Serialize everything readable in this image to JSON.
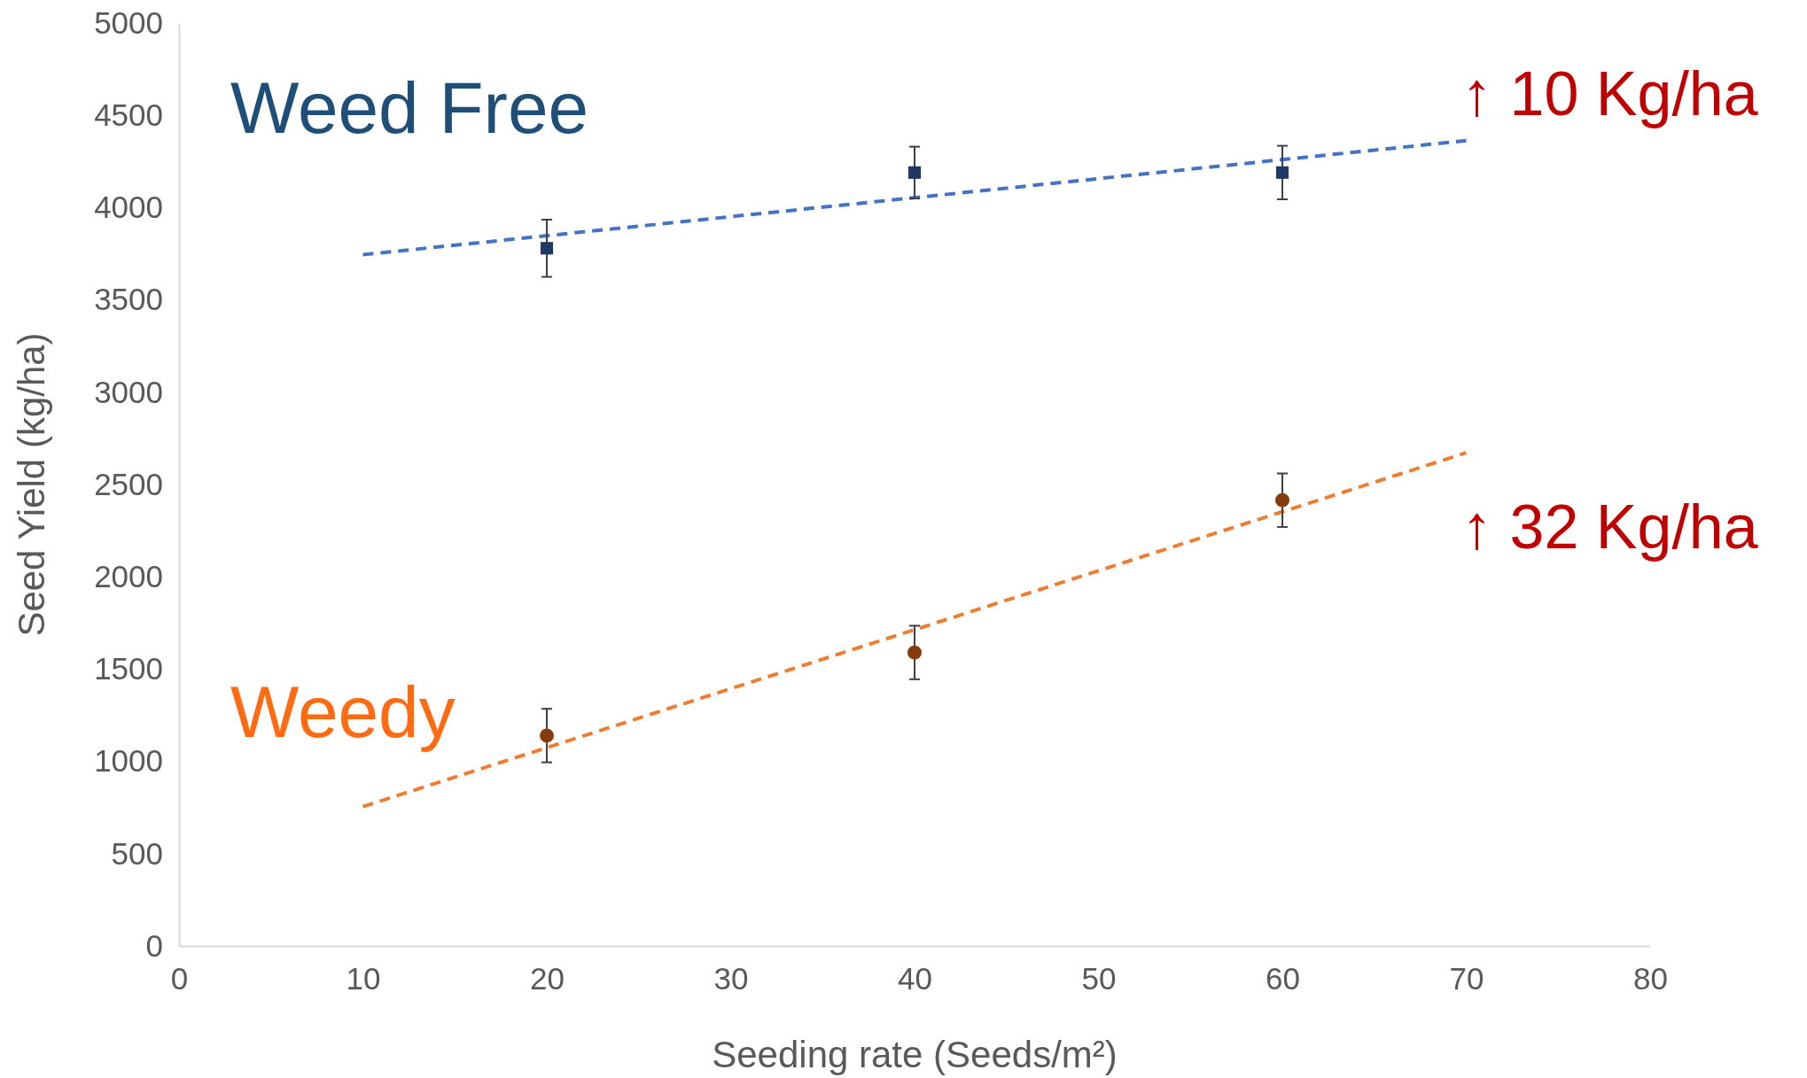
{
  "chart_data": {
    "type": "scatter",
    "xlabel": "Seeding rate (Seeds/m²)",
    "ylabel": "Seed Yield (kg/ha)",
    "xlim": [
      0,
      80
    ],
    "xticks": [
      0,
      10,
      20,
      30,
      40,
      50,
      60,
      70,
      80
    ],
    "ylim": [
      0,
      5000
    ],
    "yticks": [
      0,
      500,
      1000,
      1500,
      2000,
      2500,
      3000,
      3500,
      4000,
      4500,
      5000
    ],
    "grid": false,
    "series": [
      {
        "name": "Weed Free",
        "marker": "square",
        "color": "#1f3864",
        "x": [
          20,
          40,
          60
        ],
        "values": [
          3780,
          4190,
          4190
        ],
        "errors": [
          155,
          140,
          145
        ]
      },
      {
        "name": "Weedy",
        "marker": "circle",
        "color": "#843c0c",
        "x": [
          20,
          40,
          60
        ],
        "values": [
          1140,
          1590,
          2415
        ],
        "errors": [
          145,
          145,
          145
        ]
      },
      {
        "type": "line",
        "line_style": "dashed",
        "marker": "none",
        "color": "#4472c4",
        "x": [
          10,
          70
        ],
        "values": [
          3745,
          4363
        ]
      },
      {
        "type": "line",
        "line_style": "dashed",
        "marker": "none",
        "color": "#ed7d31",
        "x": [
          10,
          70
        ],
        "values": [
          755,
          2672
        ]
      }
    ],
    "annotations": [
      "↑ 10 Kg/ha",
      "↑ 32 Kg/ha"
    ]
  }
}
